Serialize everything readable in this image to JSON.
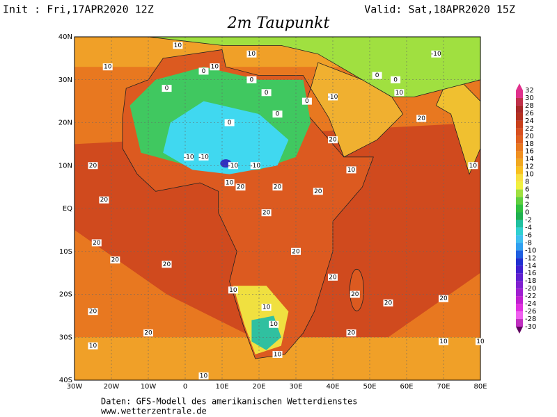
{
  "header": {
    "init": "Init : Fri,17APR2020 12Z",
    "valid": "Valid: Sat,18APR2020 15Z",
    "title": "2m Taupunkt"
  },
  "map": {
    "lonlim": [
      -30,
      80
    ],
    "latlim": [
      -40,
      40
    ],
    "lonticks": [
      {
        "value": -30,
        "label": "30W"
      },
      {
        "value": -20,
        "label": "20W"
      },
      {
        "value": -10,
        "label": "10W"
      },
      0,
      {
        "value": 10,
        "label": "10E"
      },
      {
        "value": 20,
        "label": "20E"
      },
      {
        "value": 30,
        "label": "30E"
      },
      {
        "value": 40,
        "label": "40E"
      },
      {
        "value": 50,
        "label": "50E"
      },
      {
        "value": 60,
        "label": "60E"
      },
      {
        "value": 70,
        "label": "70E"
      },
      {
        "value": 80,
        "label": "80E"
      }
    ],
    "latticks": [
      {
        "value": 40,
        "label": "40N"
      },
      {
        "value": 30,
        "label": "30N"
      },
      {
        "value": 20,
        "label": "20N"
      },
      {
        "value": 10,
        "label": "10N"
      },
      {
        "value": 0,
        "label": "EQ"
      },
      {
        "value": -10,
        "label": "10S"
      },
      {
        "value": -20,
        "label": "20S"
      },
      {
        "value": -30,
        "label": "30S"
      },
      {
        "value": -40,
        "label": "40S"
      }
    ],
    "contour_labels": [
      {
        "value": 10,
        "lon": -21,
        "lat": 33
      },
      {
        "value": 10,
        "lon": -2,
        "lat": 38
      },
      {
        "value": 10,
        "lon": 8,
        "lat": 33
      },
      {
        "value": 10,
        "lon": 18,
        "lat": 36
      },
      {
        "value": 0,
        "lon": 5,
        "lat": 32
      },
      {
        "value": 0,
        "lon": -5,
        "lat": 28
      },
      {
        "value": 0,
        "lon": 18,
        "lat": 30
      },
      {
        "value": 0,
        "lon": 22,
        "lat": 27
      },
      {
        "value": 0,
        "lon": 33,
        "lat": 25
      },
      {
        "value": -10,
        "lon": 40,
        "lat": 26
      },
      {
        "value": 0,
        "lon": 52,
        "lat": 31
      },
      {
        "value": 0,
        "lon": 57,
        "lat": 30
      },
      {
        "value": 10,
        "lon": 58,
        "lat": 27
      },
      {
        "value": -10,
        "lon": 68,
        "lat": 36
      },
      {
        "value": 0,
        "lon": 12,
        "lat": 20
      },
      {
        "value": 0,
        "lon": 25,
        "lat": 22
      },
      {
        "value": -10,
        "lon": 1,
        "lat": 12
      },
      {
        "value": -10,
        "lon": 5,
        "lat": 12
      },
      {
        "value": -10,
        "lon": 13,
        "lat": 10
      },
      {
        "value": -10,
        "lon": 19,
        "lat": 10
      },
      {
        "value": 10,
        "lon": 12,
        "lat": 6
      },
      {
        "value": 20,
        "lon": 40,
        "lat": 16
      },
      {
        "value": 10,
        "lon": 45,
        "lat": 9
      },
      {
        "value": 20,
        "lon": 64,
        "lat": 21
      },
      {
        "value": 10,
        "lon": 78,
        "lat": 10
      },
      {
        "value": 20,
        "lon": -25,
        "lat": 10
      },
      {
        "value": 20,
        "lon": -22,
        "lat": 2
      },
      {
        "value": 20,
        "lon": 15,
        "lat": 5
      },
      {
        "value": 20,
        "lon": 25,
        "lat": 5
      },
      {
        "value": 20,
        "lon": 36,
        "lat": 4
      },
      {
        "value": 20,
        "lon": 22,
        "lat": -1
      },
      {
        "value": 20,
        "lon": 30,
        "lat": -10
      },
      {
        "value": 20,
        "lon": -24,
        "lat": -8
      },
      {
        "value": 20,
        "lon": -19,
        "lat": -12
      },
      {
        "value": 20,
        "lon": -5,
        "lat": -13
      },
      {
        "value": 10,
        "lon": 13,
        "lat": -19
      },
      {
        "value": 20,
        "lon": 40,
        "lat": -16
      },
      {
        "value": 20,
        "lon": 46,
        "lat": -20
      },
      {
        "value": 20,
        "lon": 55,
        "lat": -22
      },
      {
        "value": 20,
        "lon": 70,
        "lat": -21
      },
      {
        "value": 10,
        "lon": 22,
        "lat": -23
      },
      {
        "value": 10,
        "lon": 24,
        "lat": -27
      },
      {
        "value": 20,
        "lon": -25,
        "lat": -24
      },
      {
        "value": 20,
        "lon": -10,
        "lat": -29
      },
      {
        "value": 20,
        "lon": 45,
        "lat": -29
      },
      {
        "value": 10,
        "lon": 25,
        "lat": -34
      },
      {
        "value": 10,
        "lon": -25,
        "lat": -32
      },
      {
        "value": 10,
        "lon": 70,
        "lat": -31
      },
      {
        "value": 10,
        "lon": 5,
        "lat": -39
      },
      {
        "value": 10,
        "lon": 80,
        "lat": -31
      }
    ]
  },
  "colorbar": {
    "levels": [
      32,
      30,
      28,
      26,
      24,
      22,
      20,
      18,
      16,
      14,
      12,
      10,
      8,
      6,
      4,
      2,
      0,
      -2,
      -4,
      -6,
      -8,
      -10,
      -12,
      -14,
      -16,
      -18,
      -20,
      -22,
      -24,
      -26,
      -28,
      -30
    ],
    "colors": [
      "#e0308c",
      "#c0304a",
      "#a82828",
      "#b43020",
      "#c8401c",
      "#d85020",
      "#e06020",
      "#e87820",
      "#f09020",
      "#f0a820",
      "#f8c020",
      "#f8e040",
      "#f0f040",
      "#a0e040",
      "#60d040",
      "#30c040",
      "#20b050",
      "#20c0a0",
      "#30d0d0",
      "#40c0f0",
      "#30a0f0",
      "#2060e0",
      "#2030d0",
      "#4020d0",
      "#6020d0",
      "#8020d0",
      "#a020d0",
      "#c020d0",
      "#e030e0",
      "#f060f0",
      "#c030c0",
      "#600060"
    ]
  },
  "footer": {
    "line1": "Daten: GFS-Modell des amerikanischen Wetterdienstes",
    "line2": "www.wetterzentrale.de"
  }
}
